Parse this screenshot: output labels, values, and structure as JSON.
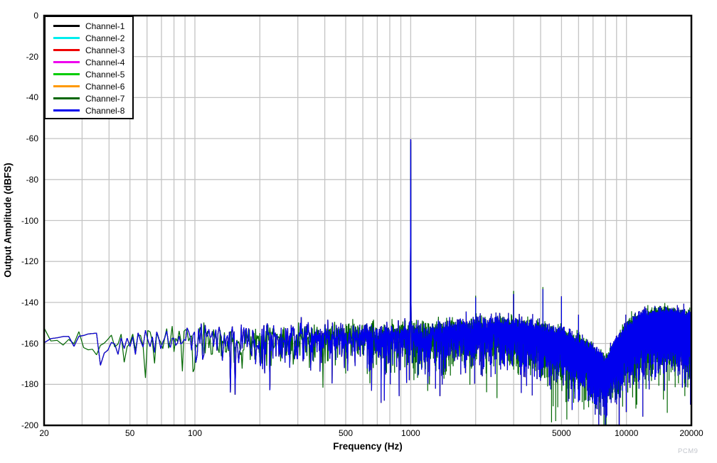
{
  "figure": {
    "watermark": "PCM9"
  },
  "chart_data": {
    "type": "line",
    "title": "",
    "xlabel": "Frequency (Hz)",
    "ylabel": "Output Amplitude (dBFS)",
    "x_scale": "log",
    "xlim": [
      20,
      20000
    ],
    "ylim": [
      -200,
      0
    ],
    "grid": {
      "show": true,
      "color": "#c4c4c4"
    },
    "x_tick_labels": [
      "20",
      "50",
      "100",
      "500",
      "1000",
      "5000",
      "10000",
      "20000"
    ],
    "x_tick_values": [
      20,
      50,
      100,
      500,
      1000,
      5000,
      10000,
      20000
    ],
    "y_tick_labels": [
      "0",
      "-20",
      "-40",
      "-60",
      "-80",
      "-100",
      "-120",
      "-140",
      "-160",
      "-180",
      "-200"
    ],
    "y_tick_values": [
      0,
      -20,
      -40,
      -60,
      -80,
      -100,
      -120,
      -140,
      -160,
      -180,
      -200
    ],
    "legend_position": "top-left",
    "series": [
      {
        "name": "Channel-1",
        "color": "#000000"
      },
      {
        "name": "Channel-2",
        "color": "#00eeee"
      },
      {
        "name": "Channel-3",
        "color": "#ee0000"
      },
      {
        "name": "Channel-4",
        "color": "#ee00ee"
      },
      {
        "name": "Channel-5",
        "color": "#00cc00"
      },
      {
        "name": "Channel-6",
        "color": "#ff9900"
      },
      {
        "name": "Channel-7",
        "color": "#006600"
      },
      {
        "name": "Channel-8",
        "color": "#0000ee"
      }
    ],
    "spectrum": {
      "note_visible_traces": [
        "Channel-7",
        "Channel-8"
      ],
      "bin_hz": 1.5,
      "fundamental": {
        "hz": 1000,
        "dbfs": -60.5
      },
      "harmonics": [
        {
          "hz": 2000,
          "dbfs": -137.5
        },
        {
          "hz": 3000,
          "dbfs": -136
        },
        {
          "hz": 4100,
          "dbfs": -133.5
        },
        {
          "hz": 5000,
          "dbfs": -137
        },
        {
          "hz": 6000,
          "dbfs": -146
        }
      ],
      "noise_floor_db": [
        [
          20,
          -157
        ],
        [
          35,
          -159
        ],
        [
          60,
          -158
        ],
        [
          100,
          -157
        ],
        [
          200,
          -157
        ],
        [
          400,
          -156
        ],
        [
          800,
          -156
        ],
        [
          1500,
          -155
        ],
        [
          2500,
          -153
        ],
        [
          3500,
          -155
        ],
        [
          5000,
          -159
        ],
        [
          6500,
          -165
        ],
        [
          8000,
          -173
        ],
        [
          9000,
          -164
        ],
        [
          10000,
          -157
        ],
        [
          12000,
          -151
        ],
        [
          16000,
          -150
        ],
        [
          20000,
          -152
        ]
      ]
    }
  }
}
